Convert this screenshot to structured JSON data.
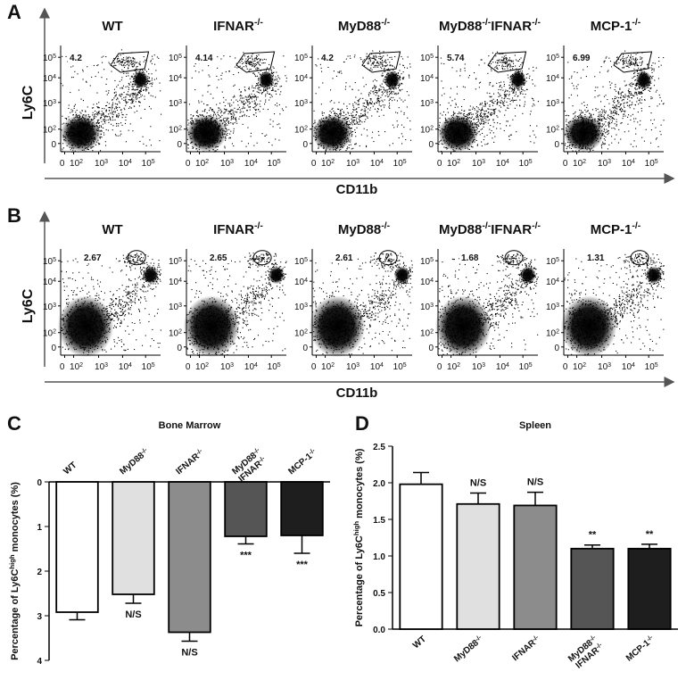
{
  "flow_genotypes": [
    [
      "WT"
    ],
    [
      "IFNAR",
      "-/-"
    ],
    [
      "MyD88",
      "-/-"
    ],
    [
      "MyD88",
      "-/-",
      "IFNAR",
      "-/-"
    ],
    [
      "MCP-1",
      "-/-"
    ]
  ],
  "flow_y_ticks": [
    [
      "10",
      "5"
    ],
    [
      "10",
      "4"
    ],
    [
      "10",
      "3"
    ],
    [
      "10",
      "2"
    ],
    [
      "0"
    ]
  ],
  "flow_x_ticks": [
    [
      "0"
    ],
    [
      "10",
      "2"
    ],
    [
      "10",
      "3"
    ],
    [
      "10",
      "4"
    ],
    [
      "10",
      "5"
    ]
  ],
  "panel_a": {
    "letter": "A",
    "y_label": "Ly6C",
    "x_label": "CD11b",
    "gates": [
      4.2,
      4.14,
      4.2,
      5.74,
      6.99
    ]
  },
  "panel_b": {
    "letter": "B",
    "y_label": "Ly6C",
    "x_label": "CD11b",
    "gates": [
      2.67,
      2.65,
      2.61,
      1.68,
      1.31
    ]
  },
  "chart_data": [
    {
      "type": "bar",
      "letter": "C",
      "title": "Bone Marrow",
      "y_label": [
        "Percentage of Ly6C",
        "high",
        " monocytes (%)"
      ],
      "categories": [
        [
          "WT"
        ],
        [
          "MyD88",
          "-/-"
        ],
        [
          "IFNAR",
          "-/-"
        ],
        [
          "MyD88",
          "-/-",
          "IFNAR",
          "-/-"
        ],
        [
          "MCP-1",
          "-/-"
        ]
      ],
      "values": [
        2.92,
        2.52,
        3.37,
        1.22,
        1.2
      ],
      "errors": [
        0.17,
        0.2,
        0.2,
        0.17,
        0.4
      ],
      "annotations": [
        null,
        "N/S",
        "N/S",
        "***",
        "***"
      ],
      "colors": [
        "#ffffff",
        "#e0e0e0",
        "#8c8c8c",
        "#555555",
        "#1e1e1e"
      ],
      "ylim": [
        0,
        4
      ],
      "yticks": [
        0,
        1,
        2,
        3,
        4
      ],
      "y_inverted": true
    },
    {
      "type": "bar",
      "letter": "D",
      "title": "Spleen",
      "y_label": [
        "Percentage of Ly6C",
        "high",
        " monocytes (%)"
      ],
      "categories": [
        [
          "WT"
        ],
        [
          "MyD88",
          "-/-"
        ],
        [
          "IFNAR",
          "-/-"
        ],
        [
          "MyD88",
          "-/-",
          "IFNAR",
          "-/-"
        ],
        [
          "MCP-1",
          "-/-"
        ]
      ],
      "values": [
        1.98,
        1.71,
        1.69,
        1.1,
        1.1
      ],
      "errors": [
        0.16,
        0.15,
        0.18,
        0.05,
        0.06
      ],
      "annotations": [
        null,
        "N/S",
        "N/S",
        "**",
        "**"
      ],
      "colors": [
        "#ffffff",
        "#e0e0e0",
        "#8c8c8c",
        "#555555",
        "#1e1e1e"
      ],
      "ylim": [
        0,
        2.5
      ],
      "yticks": [
        {
          "value": 0,
          "label": "0.0"
        },
        0.5,
        {
          "value": 1,
          "label": "1.0"
        },
        1.5,
        {
          "value": 2,
          "label": "2.0"
        },
        2.5
      ],
      "y_inverted": false
    }
  ]
}
